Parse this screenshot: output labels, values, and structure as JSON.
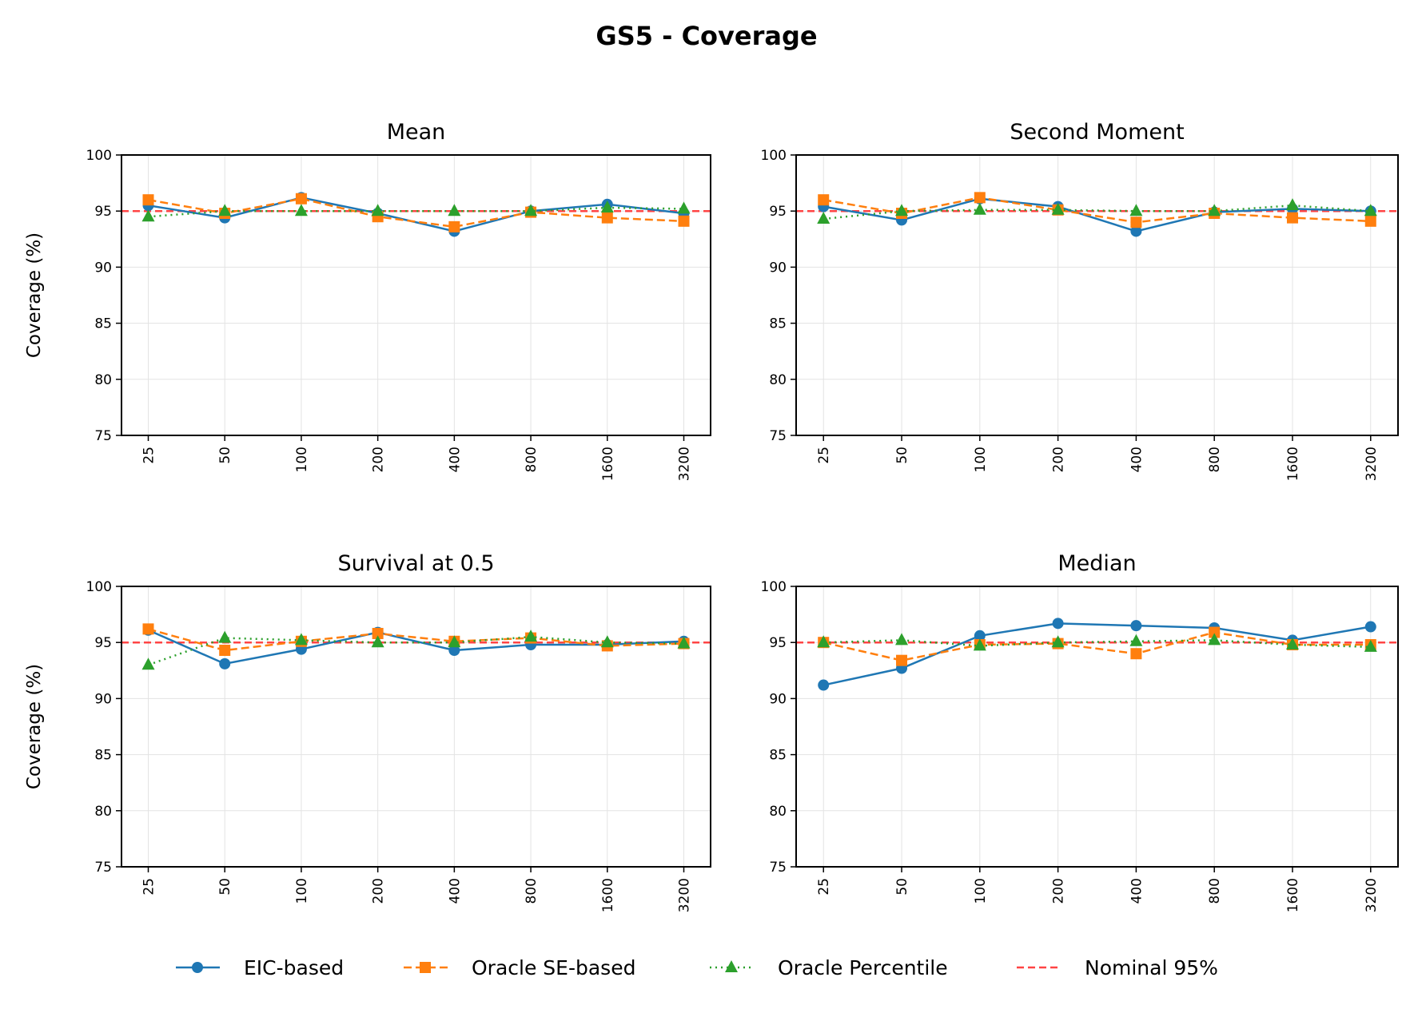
{
  "chart_data": {
    "type": "line",
    "title": "GS5 - Coverage",
    "categories": [
      "25",
      "50",
      "100",
      "200",
      "400",
      "800",
      "1600",
      "3200"
    ],
    "ylim": [
      75,
      100
    ],
    "yticks": [
      75,
      80,
      85,
      90,
      95,
      100
    ],
    "ylabel": "Coverage (%)",
    "grid": true,
    "nominal": 95,
    "legend_placement": "bottom-center",
    "legend": [
      "EIC-based",
      "Oracle SE-based",
      "Oracle Percentile",
      "Nominal 95%"
    ],
    "colors": {
      "eic": "#1f77b4",
      "se": "#ff7f0e",
      "pct": "#2ca02c",
      "nominal": "#ff4444"
    },
    "panels": [
      {
        "title": "Mean",
        "series": [
          {
            "name": "EIC-based",
            "values": [
              95.5,
              94.4,
              96.2,
              94.8,
              93.2,
              95.0,
              95.6,
              94.8
            ]
          },
          {
            "name": "Oracle SE-based",
            "values": [
              96.0,
              94.8,
              96.1,
              94.5,
              93.6,
              94.9,
              94.4,
              94.1
            ]
          },
          {
            "name": "Oracle Percentile",
            "values": [
              94.5,
              95.0,
              95.0,
              95.0,
              95.0,
              95.0,
              95.3,
              95.2
            ]
          }
        ]
      },
      {
        "title": "Second Moment",
        "series": [
          {
            "name": "EIC-based",
            "values": [
              95.4,
              94.2,
              96.1,
              95.4,
              93.2,
              94.9,
              95.2,
              95.0
            ]
          },
          {
            "name": "Oracle SE-based",
            "values": [
              96.0,
              94.8,
              96.2,
              95.1,
              94.0,
              94.8,
              94.4,
              94.1
            ]
          },
          {
            "name": "Oracle Percentile",
            "values": [
              94.3,
              95.0,
              95.1,
              95.1,
              95.0,
              95.0,
              95.5,
              95.0
            ]
          }
        ]
      },
      {
        "title": "Survival at 0.5",
        "series": [
          {
            "name": "EIC-based",
            "values": [
              96.1,
              93.1,
              94.4,
              95.9,
              94.3,
              94.8,
              94.8,
              95.1
            ]
          },
          {
            "name": "Oracle SE-based",
            "values": [
              96.2,
              94.3,
              95.1,
              95.8,
              95.1,
              95.4,
              94.7,
              94.9
            ]
          },
          {
            "name": "Oracle Percentile",
            "values": [
              93.0,
              95.4,
              95.2,
              95.0,
              95.0,
              95.5,
              95.0,
              94.9
            ]
          }
        ]
      },
      {
        "title": "Median",
        "series": [
          {
            "name": "EIC-based",
            "values": [
              91.2,
              92.7,
              95.6,
              96.7,
              96.5,
              96.3,
              95.2,
              96.4
            ]
          },
          {
            "name": "Oracle SE-based",
            "values": [
              95.0,
              93.4,
              94.8,
              94.9,
              94.0,
              95.9,
              94.8,
              94.8
            ]
          },
          {
            "name": "Oracle Percentile",
            "values": [
              95.0,
              95.2,
              94.7,
              95.0,
              95.1,
              95.2,
              94.8,
              94.6
            ]
          }
        ]
      }
    ]
  }
}
